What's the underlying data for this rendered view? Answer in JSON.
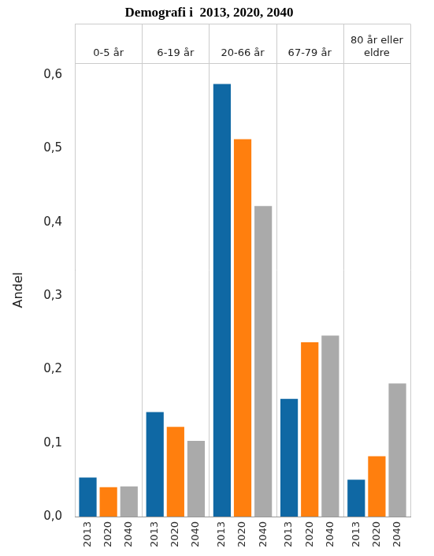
{
  "chart_data": {
    "type": "bar",
    "title": "Demografi i  2013, 2020, 2040",
    "y_label": "Andel",
    "categories": [
      "0-5 år",
      "6-19 år",
      "20-66 år",
      "67-79 år",
      "80 år eller eldre"
    ],
    "series": [
      {
        "name": "2013",
        "color": "#0f68a4",
        "values": [
          0.053,
          0.142,
          0.588,
          0.16,
          0.05
        ]
      },
      {
        "name": "2020",
        "color": "#ff7f0e",
        "values": [
          0.04,
          0.122,
          0.513,
          0.237,
          0.082
        ]
      },
      {
        "name": "2040",
        "color": "#aaaaaa",
        "values": [
          0.041,
          0.103,
          0.422,
          0.246,
          0.181
        ]
      }
    ],
    "ylim": [
      0,
      0.616
    ],
    "yticks": [
      {
        "value": 0,
        "label": "0,0"
      },
      {
        "value": 0.1,
        "label": "0,1"
      },
      {
        "value": 0.2,
        "label": "0,2"
      },
      {
        "value": 0.3,
        "label": "0,3"
      },
      {
        "value": 0.4,
        "label": "0,4"
      },
      {
        "value": 0.5,
        "label": "0,5"
      },
      {
        "value": 0.6,
        "label": "0,6"
      }
    ],
    "grid": false
  }
}
